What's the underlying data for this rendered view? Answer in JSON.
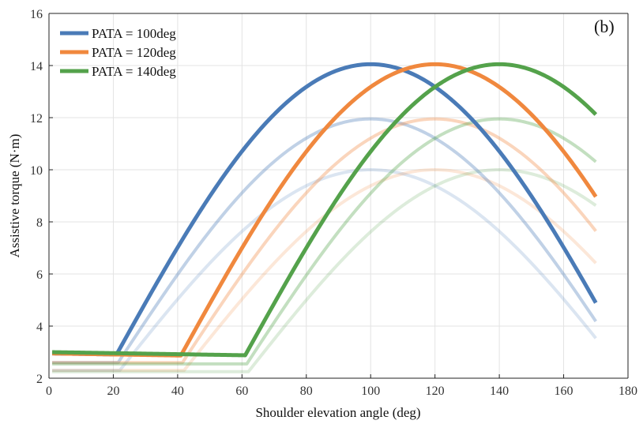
{
  "chart_data": {
    "type": "line",
    "title": "",
    "panel_label": "(b)",
    "xlabel": "Shoulder elevation angle (deg)",
    "ylabel": "Assistive torque (N·m)",
    "xlim": [
      0,
      180
    ],
    "ylim": [
      2,
      16
    ],
    "xticks": [
      0,
      20,
      40,
      60,
      80,
      100,
      120,
      140,
      160,
      180
    ],
    "yticks": [
      2,
      4,
      6,
      8,
      10,
      12,
      14,
      16
    ],
    "grid": true,
    "legend_position": "top-left",
    "legend": [
      {
        "label": "PATA = 100deg",
        "color": "#4a7bb7"
      },
      {
        "label": "PATA = 120deg",
        "color": "#f0883e"
      },
      {
        "label": "PATA = 140deg",
        "color": "#54a24b"
      }
    ],
    "curve_model": {
      "x_range": [
        1,
        170
      ],
      "description": "Flat segment until onset angle, then sinusoidal rise to peak at PATA and decline"
    },
    "series": [
      {
        "name": "PATA = 100deg",
        "color": "#4a7bb7",
        "pata": 100,
        "onset": 21,
        "level": 2.95,
        "level_slope": 0.002,
        "peak": 14.05,
        "opacity": 1.0,
        "width": 5,
        "in_legend": true,
        "end_value": 5.35
      },
      {
        "name": "PATA = 100deg (mid)",
        "color": "#4a7bb7",
        "pata": 100,
        "onset": 21.5,
        "level": 2.6,
        "level_slope": 0.0,
        "peak": 11.95,
        "opacity": 0.35,
        "width": 4,
        "in_legend": false,
        "end_value": 4.4
      },
      {
        "name": "PATA = 100deg (low)",
        "color": "#4a7bb7",
        "pata": 100,
        "onset": 22,
        "level": 2.3,
        "level_slope": 0.0,
        "peak": 10.0,
        "opacity": 0.2,
        "width": 4,
        "in_legend": false,
        "end_value": 3.45
      },
      {
        "name": "PATA = 120deg",
        "color": "#f0883e",
        "pata": 120,
        "onset": 41,
        "level": 2.95,
        "level_slope": 0.002,
        "peak": 14.05,
        "opacity": 1.0,
        "width": 5,
        "in_legend": true,
        "end_value": 9.6
      },
      {
        "name": "PATA = 120deg (mid)",
        "color": "#f0883e",
        "pata": 120,
        "onset": 41.5,
        "level": 2.6,
        "level_slope": 0.0,
        "peak": 11.95,
        "opacity": 0.35,
        "width": 4,
        "in_legend": false,
        "end_value": 8.1
      },
      {
        "name": "PATA = 120deg (low)",
        "color": "#f0883e",
        "pata": 120,
        "onset": 42,
        "level": 2.3,
        "level_slope": 0.0,
        "peak": 10.0,
        "opacity": 0.2,
        "width": 4,
        "in_legend": false,
        "end_value": 6.65
      },
      {
        "name": "PATA = 140deg",
        "color": "#54a24b",
        "pata": 140,
        "onset": 61,
        "level": 3.0,
        "level_slope": 0.002,
        "peak": 14.05,
        "opacity": 1.0,
        "width": 5,
        "in_legend": true,
        "end_value": 12.45
      },
      {
        "name": "PATA = 140deg (mid)",
        "color": "#54a24b",
        "pata": 140,
        "onset": 61.5,
        "level": 2.55,
        "level_slope": 0.0,
        "peak": 11.95,
        "opacity": 0.35,
        "width": 4,
        "in_legend": false,
        "end_value": 10.55
      },
      {
        "name": "PATA = 140deg (low)",
        "color": "#54a24b",
        "pata": 140,
        "onset": 62,
        "level": 2.25,
        "level_slope": 0.0,
        "peak": 10.0,
        "opacity": 0.2,
        "width": 4,
        "in_legend": false,
        "end_value": 8.8
      }
    ]
  }
}
